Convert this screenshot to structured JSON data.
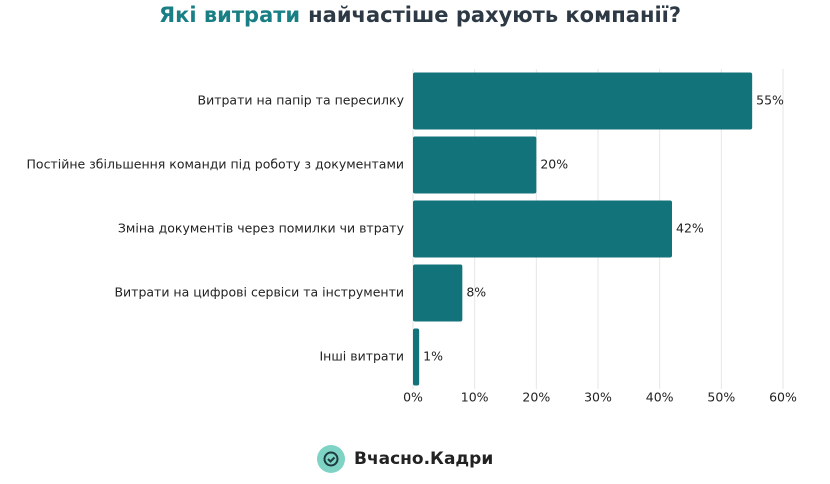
{
  "chart_data": {
    "type": "hbar",
    "title": {
      "highlight": "Які витрати",
      "rest": "найчастіше рахують компанії?"
    },
    "categories": [
      "Витрати на папір та пересилку",
      "Постійне збільшення команди під роботу з документами",
      "Зміна документів через помилки чи втрату",
      "Витрати на цифрові сервіси та інструменти",
      "Інші витрати"
    ],
    "values": [
      55,
      20,
      42,
      8,
      1
    ],
    "value_labels": [
      "55%",
      "20%",
      "42%",
      "8%",
      "1%"
    ],
    "color": "#13737a",
    "xlim": [
      0,
      60
    ],
    "xticks": [
      {
        "value": 0,
        "label": "0%"
      },
      {
        "value": 10,
        "label": "10%"
      },
      {
        "value": 20,
        "label": "20%"
      },
      {
        "value": 30,
        "label": "30%"
      },
      {
        "value": 40,
        "label": "40%"
      },
      {
        "value": 50,
        "label": "50%"
      },
      {
        "value": 60,
        "label": "60%"
      }
    ],
    "grid": true
  },
  "logo": "Вчасно.Кадри"
}
